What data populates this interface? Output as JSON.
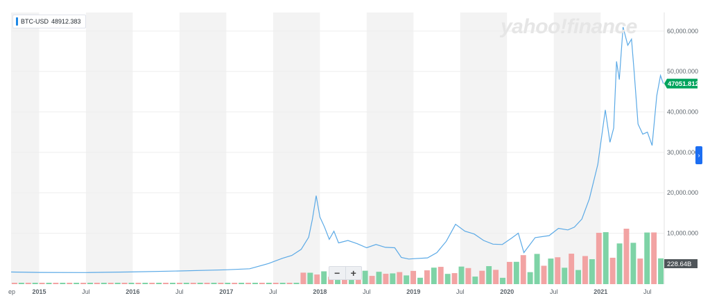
{
  "chart_data": {
    "type": "line",
    "legend": {
      "symbol": "BTC-USD",
      "value": "48912.383"
    },
    "brand": "yahoo!finance",
    "last_price_label": "47051.812",
    "volume_label": "228.64B",
    "colors": {
      "line": "#5aa9e6",
      "price_tag": "#00a35c",
      "volume_up": "#7ed3a6",
      "volume_down": "#f2a3a3",
      "band": "#f3f3f3",
      "accent": "#1c6ef2"
    },
    "x_axis": {
      "ticks": [
        {
          "label": "ep",
          "t": 2014.67,
          "bold": false
        },
        {
          "label": "2015",
          "t": 2015.0,
          "bold": true
        },
        {
          "label": "Jul",
          "t": 2015.5,
          "bold": false
        },
        {
          "label": "2016",
          "t": 2016.0,
          "bold": true
        },
        {
          "label": "Jul",
          "t": 2016.5,
          "bold": false
        },
        {
          "label": "2017",
          "t": 2017.0,
          "bold": true
        },
        {
          "label": "Jul",
          "t": 2017.5,
          "bold": false
        },
        {
          "label": "2018",
          "t": 2018.0,
          "bold": true
        },
        {
          "label": "Jul",
          "t": 2018.5,
          "bold": false
        },
        {
          "label": "2019",
          "t": 2019.0,
          "bold": true
        },
        {
          "label": "Jul",
          "t": 2019.5,
          "bold": false
        },
        {
          "label": "2020",
          "t": 2020.0,
          "bold": true
        },
        {
          "label": "Jul",
          "t": 2020.5,
          "bold": false
        },
        {
          "label": "2021",
          "t": 2021.0,
          "bold": true
        },
        {
          "label": "Jul",
          "t": 2021.5,
          "bold": false
        }
      ],
      "range": [
        2014.7,
        2021.68
      ]
    },
    "y_axis": {
      "ticks": [
        {
          "label": "10,000.000",
          "v": 10000
        },
        {
          "label": "20,000.000",
          "v": 20000
        },
        {
          "label": "30,000.000",
          "v": 30000
        },
        {
          "label": "40,000.000",
          "v": 40000
        },
        {
          "label": "50,000.000",
          "v": 50000
        },
        {
          "label": "60,000.000",
          "v": 60000
        }
      ],
      "range": [
        -2600,
        64600
      ]
    },
    "series": [
      {
        "points": [
          [
            2014.7,
            400
          ],
          [
            2015.0,
            300
          ],
          [
            2015.5,
            260
          ],
          [
            2016.0,
            420
          ],
          [
            2016.5,
            650
          ],
          [
            2017.0,
            950
          ],
          [
            2017.25,
            1200
          ],
          [
            2017.45,
            2500
          ],
          [
            2017.6,
            3800
          ],
          [
            2017.7,
            4500
          ],
          [
            2017.8,
            6000
          ],
          [
            2017.88,
            9000
          ],
          [
            2017.92,
            13500
          ],
          [
            2017.96,
            19300
          ],
          [
            2018.0,
            14000
          ],
          [
            2018.05,
            11500
          ],
          [
            2018.1,
            8500
          ],
          [
            2018.15,
            10500
          ],
          [
            2018.2,
            7600
          ],
          [
            2018.3,
            8200
          ],
          [
            2018.4,
            7400
          ],
          [
            2018.5,
            6400
          ],
          [
            2018.6,
            7200
          ],
          [
            2018.7,
            6500
          ],
          [
            2018.8,
            6400
          ],
          [
            2018.87,
            4000
          ],
          [
            2018.95,
            3600
          ],
          [
            2019.0,
            3700
          ],
          [
            2019.15,
            3900
          ],
          [
            2019.25,
            5200
          ],
          [
            2019.35,
            8000
          ],
          [
            2019.45,
            12200
          ],
          [
            2019.55,
            10500
          ],
          [
            2019.65,
            9800
          ],
          [
            2019.75,
            8200
          ],
          [
            2019.85,
            7300
          ],
          [
            2019.95,
            7200
          ],
          [
            2020.05,
            8800
          ],
          [
            2020.12,
            10000
          ],
          [
            2020.18,
            5200
          ],
          [
            2020.3,
            8900
          ],
          [
            2020.45,
            9400
          ],
          [
            2020.55,
            11200
          ],
          [
            2020.65,
            10800
          ],
          [
            2020.72,
            11500
          ],
          [
            2020.8,
            13500
          ],
          [
            2020.88,
            18500
          ],
          [
            2020.97,
            27000
          ],
          [
            2021.05,
            40500
          ],
          [
            2021.1,
            32500
          ],
          [
            2021.14,
            36000
          ],
          [
            2021.17,
            52500
          ],
          [
            2021.2,
            48000
          ],
          [
            2021.24,
            61000
          ],
          [
            2021.29,
            56500
          ],
          [
            2021.33,
            58000
          ],
          [
            2021.36,
            49500
          ],
          [
            2021.4,
            37000
          ],
          [
            2021.45,
            34500
          ],
          [
            2021.5,
            35000
          ],
          [
            2021.55,
            31700
          ],
          [
            2021.6,
            44000
          ],
          [
            2021.64,
            49000
          ],
          [
            2021.67,
            47000
          ]
        ]
      }
    ],
    "volume_bars": 95
  },
  "controls": {
    "zoom_out": "−",
    "zoom_in": "+",
    "scroll_right": "›"
  }
}
